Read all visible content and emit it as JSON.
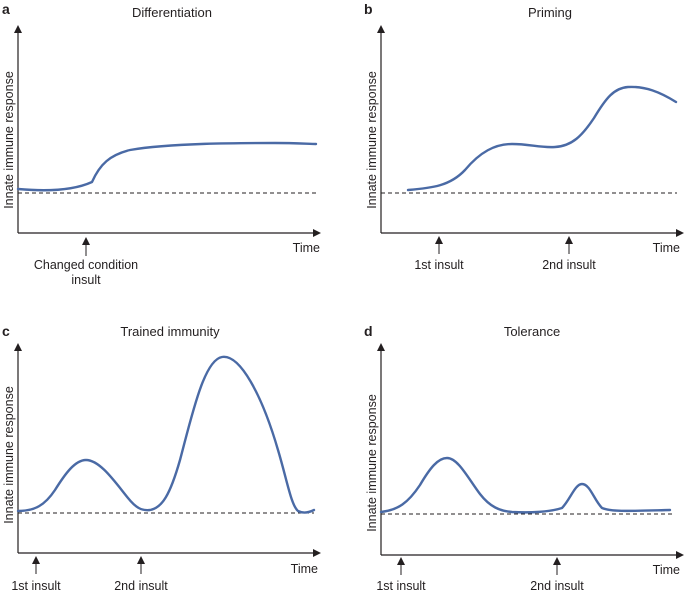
{
  "curve_color": "#4a6aa5",
  "panels": [
    {
      "letter": "a",
      "title": "Differentiation",
      "y_label": "Innate immune response",
      "x_label": "Time",
      "insults": [
        "Changed condition",
        "insult"
      ]
    },
    {
      "letter": "b",
      "title": "Priming",
      "y_label": "Innate immune response",
      "x_label": "Time",
      "insults": [
        "1st insult",
        "2nd insult"
      ]
    },
    {
      "letter": "c",
      "title": "Trained immunity",
      "y_label": "Innate immune response",
      "x_label": "Time",
      "insults": [
        "1st insult",
        "2nd insult"
      ]
    },
    {
      "letter": "d",
      "title": "Tolerance",
      "y_label": "Innate immune response",
      "x_label": "Time",
      "insults": [
        "1st insult",
        "2nd insult"
      ]
    }
  ]
}
